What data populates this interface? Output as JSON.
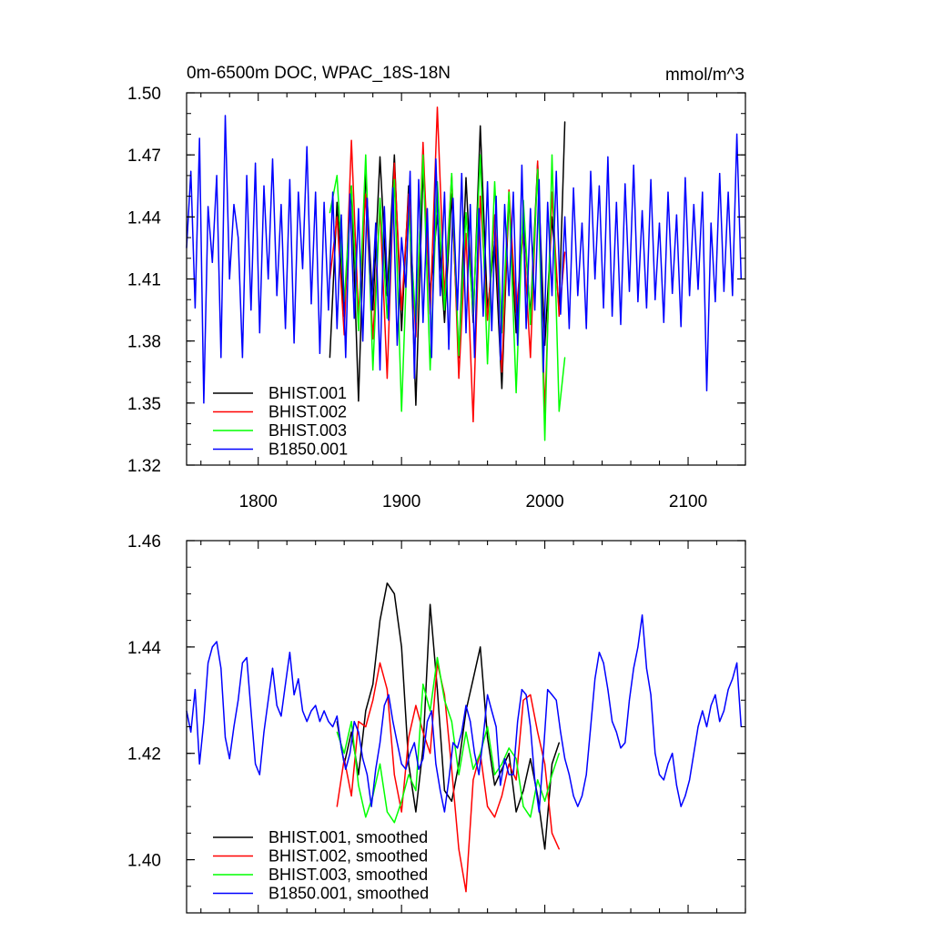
{
  "chart_data": [
    {
      "type": "line",
      "title": "0m-6500m DOC, WPAC_18S-18N",
      "units": "mmol/m^3",
      "xlabel": "",
      "ylabel": "",
      "xlim": [
        1750,
        2140
      ],
      "ylim": [
        1.32,
        1.5
      ],
      "xticks": [
        "1800",
        "1900",
        "2000",
        "2100"
      ],
      "yticks": [
        "1.32",
        "1.35",
        "1.38",
        "1.41",
        "1.44",
        "1.47",
        "1.50"
      ],
      "legend_position": "bottom-left",
      "grid": false,
      "series": [
        {
          "name": "BHIST.001",
          "color": "#000000",
          "x": [
            1850,
            1855,
            1860,
            1865,
            1870,
            1875,
            1880,
            1885,
            1890,
            1895,
            1900,
            1905,
            1910,
            1915,
            1920,
            1925,
            1930,
            1935,
            1940,
            1945,
            1950,
            1955,
            1960,
            1965,
            1970,
            1975,
            1980,
            1985,
            1990,
            1995,
            2000,
            2005,
            2010,
            2014
          ],
          "values": [
            1.372,
            1.447,
            1.392,
            1.455,
            1.351,
            1.462,
            1.395,
            1.469,
            1.402,
            1.47,
            1.385,
            1.455,
            1.349,
            1.463,
            1.403,
            1.441,
            1.389,
            1.451,
            1.372,
            1.459,
            1.389,
            1.484,
            1.395,
            1.428,
            1.357,
            1.45,
            1.384,
            1.441,
            1.392,
            1.466,
            1.378,
            1.44,
            1.395,
            1.486
          ]
        },
        {
          "name": "BHIST.002",
          "color": "#ff0000",
          "x": [
            1850,
            1855,
            1860,
            1865,
            1870,
            1875,
            1880,
            1885,
            1890,
            1895,
            1900,
            1905,
            1910,
            1915,
            1920,
            1925,
            1930,
            1935,
            1940,
            1945,
            1950,
            1955,
            1960,
            1965,
            1970,
            1975,
            1980,
            1985,
            1990,
            1995,
            2000,
            2005,
            2010,
            2014
          ],
          "values": [
            1.41,
            1.44,
            1.383,
            1.477,
            1.392,
            1.451,
            1.381,
            1.445,
            1.362,
            1.466,
            1.395,
            1.451,
            1.382,
            1.476,
            1.393,
            1.493,
            1.402,
            1.46,
            1.362,
            1.432,
            1.341,
            1.45,
            1.39,
            1.441,
            1.365,
            1.453,
            1.394,
            1.432,
            1.372,
            1.467,
            1.345,
            1.452,
            1.392,
            1.423
          ]
        },
        {
          "name": "BHIST.003",
          "color": "#00ff00",
          "x": [
            1850,
            1855,
            1860,
            1865,
            1870,
            1875,
            1880,
            1885,
            1890,
            1895,
            1900,
            1905,
            1910,
            1915,
            1920,
            1925,
            1930,
            1935,
            1940,
            1945,
            1950,
            1955,
            1960,
            1965,
            1970,
            1975,
            1980,
            1985,
            1990,
            1995,
            2000,
            2005,
            2010,
            2014
          ],
          "values": [
            1.442,
            1.46,
            1.399,
            1.455,
            1.385,
            1.47,
            1.366,
            1.449,
            1.391,
            1.458,
            1.346,
            1.443,
            1.389,
            1.47,
            1.366,
            1.457,
            1.395,
            1.461,
            1.373,
            1.442,
            1.393,
            1.47,
            1.369,
            1.457,
            1.384,
            1.452,
            1.355,
            1.448,
            1.388,
            1.463,
            1.332,
            1.47,
            1.346,
            1.372
          ]
        },
        {
          "name": "B1850.001",
          "color": "#0000ff",
          "x": [
            1750,
            1753,
            1756,
            1759,
            1762,
            1765,
            1768,
            1771,
            1774,
            1777,
            1780,
            1783,
            1786,
            1789,
            1792,
            1795,
            1798,
            1801,
            1804,
            1807,
            1810,
            1813,
            1816,
            1819,
            1822,
            1825,
            1828,
            1831,
            1834,
            1837,
            1840,
            1843,
            1846,
            1849,
            1852,
            1855,
            1858,
            1861,
            1864,
            1867,
            1870,
            1873,
            1876,
            1879,
            1882,
            1885,
            1888,
            1891,
            1894,
            1897,
            1900,
            1903,
            1906,
            1909,
            1912,
            1915,
            1918,
            1921,
            1924,
            1927,
            1930,
            1933,
            1936,
            1939,
            1942,
            1945,
            1948,
            1951,
            1954,
            1957,
            1960,
            1963,
            1966,
            1969,
            1972,
            1975,
            1978,
            1981,
            1984,
            1987,
            1990,
            1993,
            1996,
            1999,
            2002,
            2005,
            2008,
            2011,
            2014,
            2017,
            2020,
            2023,
            2026,
            2029,
            2032,
            2035,
            2038,
            2041,
            2044,
            2047,
            2050,
            2053,
            2056,
            2059,
            2062,
            2065,
            2068,
            2071,
            2074,
            2077,
            2080,
            2083,
            2086,
            2089,
            2092,
            2095,
            2098,
            2101,
            2104,
            2107,
            2110,
            2113,
            2116,
            2119,
            2122,
            2125,
            2128,
            2131,
            2134,
            2137
          ],
          "values": [
            1.425,
            1.462,
            1.396,
            1.478,
            1.35,
            1.445,
            1.418,
            1.46,
            1.372,
            1.489,
            1.41,
            1.446,
            1.43,
            1.372,
            1.46,
            1.395,
            1.466,
            1.384,
            1.455,
            1.41,
            1.468,
            1.402,
            1.446,
            1.386,
            1.458,
            1.379,
            1.452,
            1.415,
            1.474,
            1.398,
            1.452,
            1.374,
            1.447,
            1.395,
            1.452,
            1.386,
            1.441,
            1.372,
            1.451,
            1.391,
            1.444,
            1.38,
            1.449,
            1.395,
            1.437,
            1.366,
            1.445,
            1.39,
            1.454,
            1.378,
            1.43,
            1.406,
            1.462,
            1.362,
            1.458,
            1.389,
            1.444,
            1.372,
            1.468,
            1.402,
            1.452,
            1.376,
            1.449,
            1.395,
            1.461,
            1.384,
            1.446,
            1.372,
            1.444,
            1.392,
            1.457,
            1.385,
            1.45,
            1.371,
            1.446,
            1.402,
            1.452,
            1.378,
            1.465,
            1.386,
            1.444,
            1.395,
            1.458,
            1.365,
            1.447,
            1.402,
            1.462,
            1.393,
            1.44,
            1.386,
            1.454,
            1.402,
            1.437,
            1.386,
            1.462,
            1.41,
            1.455,
            1.396,
            1.469,
            1.392,
            1.447,
            1.388,
            1.456,
            1.404,
            1.465,
            1.399,
            1.443,
            1.396,
            1.458,
            1.4,
            1.437,
            1.389,
            1.452,
            1.403,
            1.441,
            1.387,
            1.459,
            1.402,
            1.446,
            1.405,
            1.452,
            1.356,
            1.437,
            1.399,
            1.461,
            1.404,
            1.452,
            1.402,
            1.48,
            1.41
          ]
        }
      ]
    },
    {
      "type": "line",
      "title": "",
      "xlabel": "",
      "ylabel": "",
      "xlim": [
        1750,
        2140
      ],
      "ylim": [
        1.39,
        1.46
      ],
      "xticks": [],
      "yticks": [
        "1.40",
        "1.42",
        "1.44",
        "1.46"
      ],
      "legend_position": "bottom-left",
      "grid": false,
      "series": [
        {
          "name": "BHIST.001, smoothed",
          "color": "#000000",
          "x": [
            1855,
            1860,
            1865,
            1870,
            1875,
            1880,
            1885,
            1890,
            1895,
            1900,
            1905,
            1910,
            1915,
            1920,
            1925,
            1930,
            1935,
            1940,
            1945,
            1950,
            1955,
            1960,
            1965,
            1970,
            1975,
            1980,
            1985,
            1990,
            1995,
            2000,
            2005,
            2010
          ],
          "values": [
            1.426,
            1.418,
            1.424,
            1.416,
            1.428,
            1.433,
            1.445,
            1.452,
            1.45,
            1.44,
            1.418,
            1.409,
            1.421,
            1.448,
            1.432,
            1.413,
            1.411,
            1.418,
            1.428,
            1.434,
            1.44,
            1.423,
            1.414,
            1.417,
            1.42,
            1.409,
            1.413,
            1.419,
            1.412,
            1.402,
            1.418,
            1.422
          ]
        },
        {
          "name": "BHIST.002, smoothed",
          "color": "#ff0000",
          "x": [
            1855,
            1860,
            1865,
            1870,
            1875,
            1880,
            1885,
            1890,
            1895,
            1900,
            1905,
            1910,
            1915,
            1920,
            1925,
            1930,
            1935,
            1940,
            1945,
            1950,
            1955,
            1960,
            1965,
            1970,
            1975,
            1980,
            1985,
            1990,
            1995,
            2000,
            2005,
            2010
          ],
          "values": [
            1.41,
            1.419,
            1.412,
            1.426,
            1.425,
            1.43,
            1.437,
            1.432,
            1.416,
            1.409,
            1.423,
            1.429,
            1.424,
            1.42,
            1.437,
            1.431,
            1.417,
            1.402,
            1.394,
            1.415,
            1.42,
            1.41,
            1.408,
            1.412,
            1.418,
            1.415,
            1.43,
            1.431,
            1.424,
            1.418,
            1.405,
            1.402
          ]
        },
        {
          "name": "BHIST.003, smoothed",
          "color": "#00ff00",
          "x": [
            1855,
            1860,
            1865,
            1870,
            1875,
            1880,
            1885,
            1890,
            1895,
            1900,
            1905,
            1910,
            1915,
            1920,
            1925,
            1930,
            1935,
            1940,
            1945,
            1950,
            1955,
            1960,
            1965,
            1970,
            1975,
            1980,
            1985,
            1990,
            1995,
            2000,
            2005,
            2010
          ],
          "values": [
            1.424,
            1.42,
            1.426,
            1.414,
            1.408,
            1.412,
            1.418,
            1.409,
            1.407,
            1.411,
            1.416,
            1.413,
            1.433,
            1.428,
            1.438,
            1.43,
            1.426,
            1.416,
            1.424,
            1.417,
            1.42,
            1.425,
            1.416,
            1.418,
            1.421,
            1.419,
            1.41,
            1.408,
            1.415,
            1.411,
            1.416,
            1.42
          ]
        },
        {
          "name": "B1850.001, smoothed",
          "color": "#0000ff",
          "x": [
            1750,
            1753,
            1756,
            1759,
            1762,
            1765,
            1768,
            1771,
            1774,
            1777,
            1780,
            1783,
            1786,
            1789,
            1792,
            1795,
            1798,
            1801,
            1804,
            1807,
            1810,
            1813,
            1816,
            1819,
            1822,
            1825,
            1828,
            1831,
            1834,
            1837,
            1840,
            1843,
            1846,
            1849,
            1852,
            1855,
            1858,
            1861,
            1864,
            1867,
            1870,
            1873,
            1876,
            1879,
            1882,
            1885,
            1888,
            1891,
            1894,
            1897,
            1900,
            1903,
            1906,
            1909,
            1912,
            1915,
            1918,
            1921,
            1924,
            1927,
            1930,
            1933,
            1936,
            1939,
            1942,
            1945,
            1948,
            1951,
            1954,
            1957,
            1960,
            1963,
            1966,
            1969,
            1972,
            1975,
            1978,
            1981,
            1984,
            1987,
            1990,
            1993,
            1996,
            1999,
            2002,
            2005,
            2008,
            2011,
            2014,
            2017,
            2020,
            2023,
            2026,
            2029,
            2032,
            2035,
            2038,
            2041,
            2044,
            2047,
            2050,
            2053,
            2056,
            2059,
            2062,
            2065,
            2068,
            2071,
            2074,
            2077,
            2080,
            2083,
            2086,
            2089,
            2092,
            2095,
            2098,
            2101,
            2104,
            2107,
            2110,
            2113,
            2116,
            2119,
            2122,
            2125,
            2128,
            2131,
            2134,
            2137
          ],
          "values": [
            1.428,
            1.424,
            1.432,
            1.418,
            1.426,
            1.437,
            1.44,
            1.441,
            1.436,
            1.423,
            1.419,
            1.425,
            1.43,
            1.437,
            1.438,
            1.428,
            1.418,
            1.416,
            1.424,
            1.43,
            1.436,
            1.429,
            1.427,
            1.433,
            1.439,
            1.431,
            1.434,
            1.428,
            1.426,
            1.428,
            1.429,
            1.426,
            1.428,
            1.426,
            1.425,
            1.427,
            1.421,
            1.417,
            1.42,
            1.426,
            1.424,
            1.419,
            1.416,
            1.41,
            1.417,
            1.422,
            1.429,
            1.431,
            1.426,
            1.422,
            1.418,
            1.417,
            1.42,
            1.422,
            1.417,
            1.419,
            1.426,
            1.428,
            1.418,
            1.413,
            1.409,
            1.415,
            1.422,
            1.421,
            1.424,
            1.429,
            1.426,
            1.42,
            1.416,
            1.423,
            1.431,
            1.428,
            1.425,
            1.414,
            1.419,
            1.416,
            1.416,
            1.426,
            1.432,
            1.431,
            1.425,
            1.415,
            1.409,
            1.42,
            1.432,
            1.431,
            1.43,
            1.424,
            1.419,
            1.416,
            1.412,
            1.41,
            1.412,
            1.416,
            1.425,
            1.434,
            1.439,
            1.437,
            1.432,
            1.426,
            1.424,
            1.421,
            1.422,
            1.43,
            1.436,
            1.44,
            1.446,
            1.436,
            1.431,
            1.42,
            1.416,
            1.415,
            1.418,
            1.42,
            1.414,
            1.41,
            1.412,
            1.415,
            1.42,
            1.425,
            1.428,
            1.425,
            1.429,
            1.431,
            1.426,
            1.428,
            1.432,
            1.434,
            1.437,
            1.425
          ]
        }
      ]
    }
  ]
}
